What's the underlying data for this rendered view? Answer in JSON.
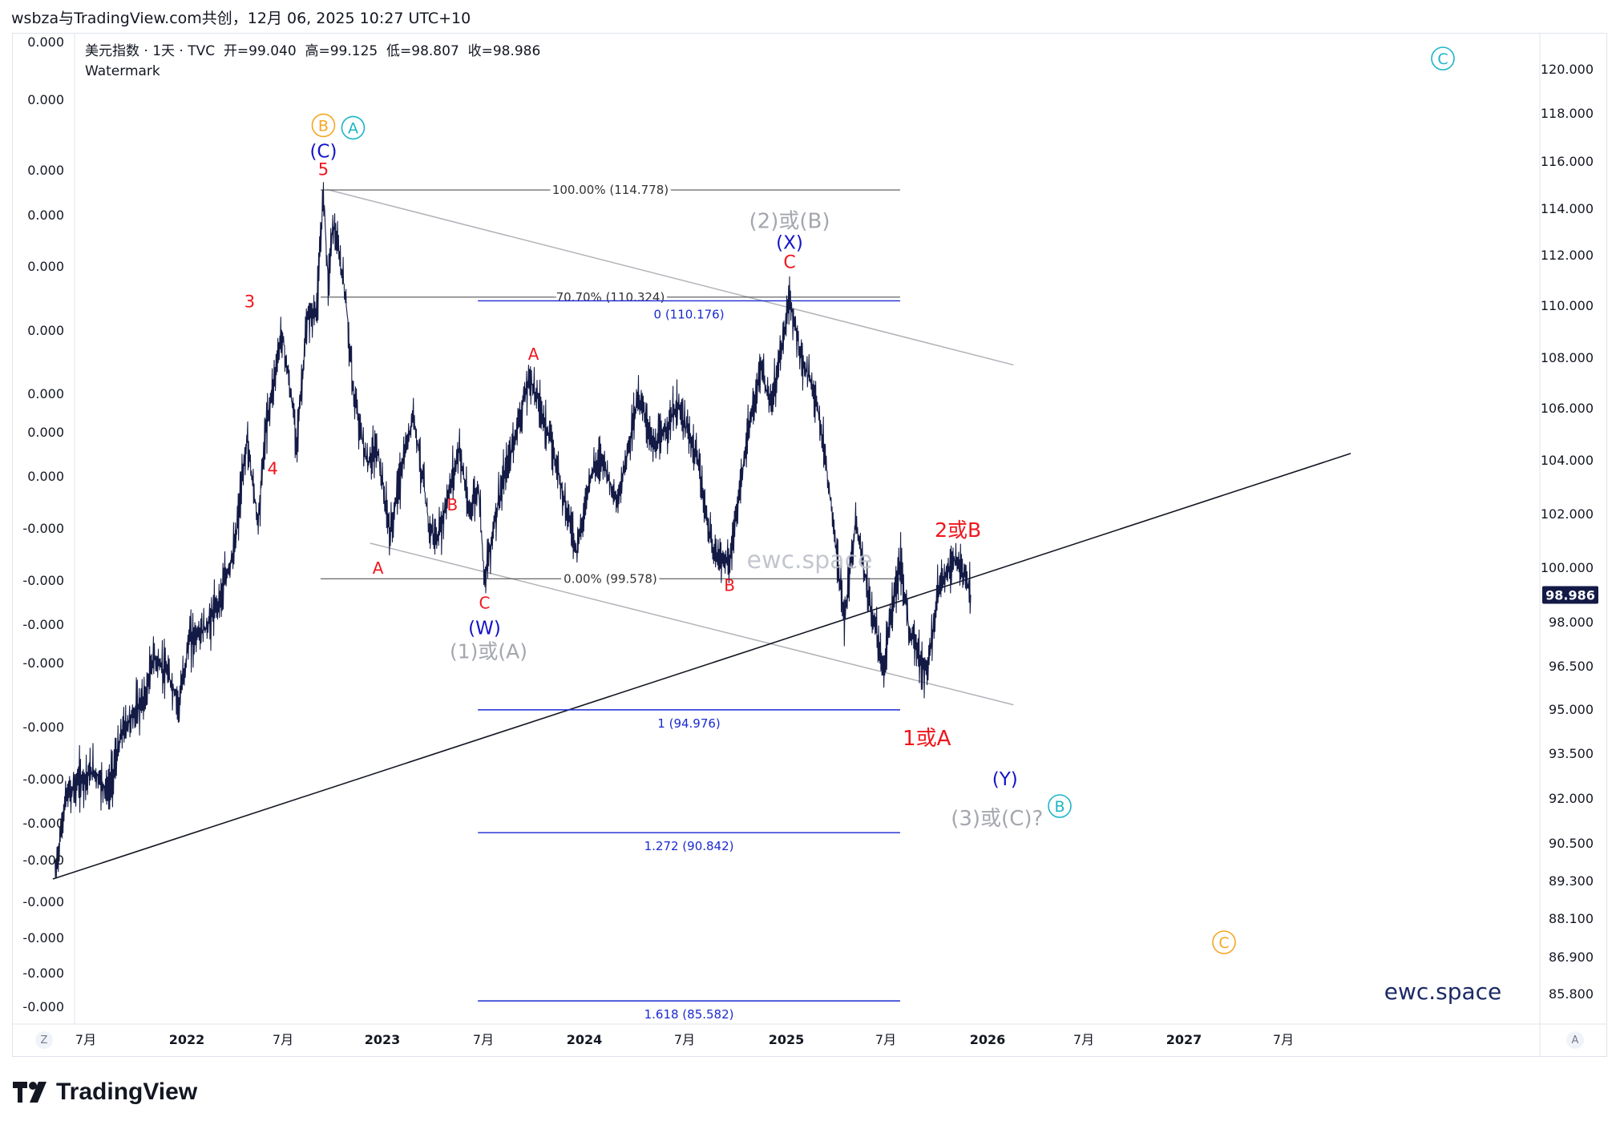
{
  "header": {
    "text": "wsbza与TradingView.com共创，12月 06, 2025 10:27 UTC+10"
  },
  "legend": {
    "symbol": "美元指数 · 1天 · TVC",
    "open": "开=99.040",
    "high": "高=99.125",
    "low": "低=98.807",
    "close": "收=98.986",
    "watermark_label": "Watermark"
  },
  "watermarks": {
    "center": "ewc.space",
    "corner": "ewc.space"
  },
  "brand": {
    "logo_text": "TradingView"
  },
  "axis_buttons": {
    "left": "Z",
    "right": "A"
  },
  "colors": {
    "price_line": "#131a45",
    "red_labels": "#f0151d",
    "blue_labels": "#1414c8",
    "gray_labels": "#a4a7ae",
    "teal_circles": "#1cb6c6",
    "orange_circles": "#f5a623",
    "fib_gray": "#555555",
    "fib_blue": "#1a2ad0",
    "channel_gray": "#b0b3b8"
  },
  "chart_data": {
    "type": "line",
    "title": "美元指数 · 1天 · TVC",
    "last_price": 98.986,
    "last_price_label": "98.986",
    "right_axis_ticks": [
      "120.000",
      "118.000",
      "116.000",
      "114.000",
      "112.000",
      "110.000",
      "108.000",
      "106.000",
      "104.000",
      "102.000",
      "100.000",
      "98.000",
      "96.500",
      "95.000",
      "93.500",
      "92.000",
      "90.500",
      "89.300",
      "88.100",
      "86.900",
      "85.800"
    ],
    "left_axis_ticks": [
      "0.000",
      "0.000",
      "0.000",
      "0.000",
      "0.000",
      "0.000",
      "0.000",
      "0.000",
      "0.000",
      "-0.000",
      "-0.000",
      "-0.000",
      "-0.000",
      "-0.000",
      "-0.000",
      "-0.000",
      "-0.000",
      "-0.000",
      "-0.000",
      "-0.000",
      "-0.000"
    ],
    "x_ticks": [
      "7月",
      "2022",
      "7月",
      "2023",
      "7月",
      "2024",
      "7月",
      "2025",
      "7月",
      "2026",
      "7月",
      "2027",
      "7月"
    ],
    "series": [
      {
        "name": "美元指数",
        "points": [
          {
            "t": "2021-06-01",
            "v": 89.5
          },
          {
            "t": "2021-06-20",
            "v": 92.0
          },
          {
            "t": "2021-07-15",
            "v": 92.6
          },
          {
            "t": "2021-08-10",
            "v": 92.9
          },
          {
            "t": "2021-09-05",
            "v": 92.2
          },
          {
            "t": "2021-10-01",
            "v": 94.3
          },
          {
            "t": "2021-11-10",
            "v": 95.4
          },
          {
            "t": "2021-11-25",
            "v": 96.8
          },
          {
            "t": "2021-12-20",
            "v": 96.2
          },
          {
            "t": "2022-01-10",
            "v": 95.2
          },
          {
            "t": "2022-01-28",
            "v": 97.4
          },
          {
            "t": "2022-03-01",
            "v": 97.8
          },
          {
            "t": "2022-03-25",
            "v": 98.9
          },
          {
            "t": "2022-04-20",
            "v": 100.7
          },
          {
            "t": "2022-05-12",
            "v": 104.8
          },
          {
            "t": "2022-06-01",
            "v": 101.7
          },
          {
            "t": "2022-06-15",
            "v": 105.2
          },
          {
            "t": "2022-07-14",
            "v": 109.0
          },
          {
            "t": "2022-08-10",
            "v": 104.8
          },
          {
            "t": "2022-08-29",
            "v": 109.5
          },
          {
            "t": "2022-09-15",
            "v": 109.8
          },
          {
            "t": "2022-09-27",
            "v": 114.8
          },
          {
            "t": "2022-10-05",
            "v": 110.9
          },
          {
            "t": "2022-10-14",
            "v": 113.4
          },
          {
            "t": "2022-11-05",
            "v": 110.5
          },
          {
            "t": "2022-11-20",
            "v": 106.5
          },
          {
            "t": "2022-12-15",
            "v": 103.8
          },
          {
            "t": "2023-01-01",
            "v": 104.5
          },
          {
            "t": "2023-01-25",
            "v": 101.2
          },
          {
            "t": "2023-02-10",
            "v": 103.2
          },
          {
            "t": "2023-03-08",
            "v": 105.8
          },
          {
            "t": "2023-04-05",
            "v": 101.5
          },
          {
            "t": "2023-04-20",
            "v": 101.0
          },
          {
            "t": "2023-05-30",
            "v": 104.5
          },
          {
            "t": "2023-06-15",
            "v": 102.0
          },
          {
            "t": "2023-07-03",
            "v": 103.0
          },
          {
            "t": "2023-07-14",
            "v": 99.6
          },
          {
            "t": "2023-08-05",
            "v": 102.2
          },
          {
            "t": "2023-09-05",
            "v": 104.8
          },
          {
            "t": "2023-10-03",
            "v": 107.2
          },
          {
            "t": "2023-10-20",
            "v": 106.2
          },
          {
            "t": "2023-11-15",
            "v": 104.3
          },
          {
            "t": "2023-12-27",
            "v": 100.6
          },
          {
            "t": "2024-01-20",
            "v": 103.4
          },
          {
            "t": "2024-02-10",
            "v": 104.2
          },
          {
            "t": "2024-03-08",
            "v": 102.3
          },
          {
            "t": "2024-04-16",
            "v": 106.5
          },
          {
            "t": "2024-05-15",
            "v": 104.4
          },
          {
            "t": "2024-06-26",
            "v": 106.1
          },
          {
            "t": "2024-07-31",
            "v": 104.0
          },
          {
            "t": "2024-08-27",
            "v": 100.6
          },
          {
            "t": "2024-09-27",
            "v": 100.2
          },
          {
            "t": "2024-10-25",
            "v": 104.3
          },
          {
            "t": "2024-11-22",
            "v": 107.6
          },
          {
            "t": "2024-12-10",
            "v": 106.0
          },
          {
            "t": "2025-01-13",
            "v": 110.2
          },
          {
            "t": "2025-02-05",
            "v": 107.8
          },
          {
            "t": "2025-03-01",
            "v": 106.5
          },
          {
            "t": "2025-03-20",
            "v": 103.8
          },
          {
            "t": "2025-04-10",
            "v": 100.0
          },
          {
            "t": "2025-04-21",
            "v": 98.0
          },
          {
            "t": "2025-05-12",
            "v": 101.8
          },
          {
            "t": "2025-06-05",
            "v": 98.8
          },
          {
            "t": "2025-07-01",
            "v": 96.4
          },
          {
            "t": "2025-07-15",
            "v": 98.4
          },
          {
            "t": "2025-08-01",
            "v": 100.2
          },
          {
            "t": "2025-08-15",
            "v": 97.8
          },
          {
            "t": "2025-09-17",
            "v": 96.2
          },
          {
            "t": "2025-10-10",
            "v": 99.4
          },
          {
            "t": "2025-11-05",
            "v": 100.3
          },
          {
            "t": "2025-11-25",
            "v": 99.6
          },
          {
            "t": "2025-12-05",
            "v": 98.99
          }
        ]
      }
    ],
    "fibonacci_retracement": [
      {
        "label": "100.00% (114.778)",
        "level": 114.778
      },
      {
        "label": "70.70% (110.324)",
        "level": 110.324
      },
      {
        "label": "0.00% (99.578)",
        "level": 99.578
      }
    ],
    "fibonacci_extension": [
      {
        "label": "0 (110.176)",
        "level": 110.176
      },
      {
        "label": "1 (94.976)",
        "level": 94.976
      },
      {
        "label": "1.272 (90.842)",
        "level": 90.842
      },
      {
        "label": "1.618 (85.582)",
        "level": 85.582
      }
    ],
    "wave_labels": [
      {
        "text": "5",
        "color": "red",
        "t": "2022-09-27",
        "v": 114.8
      },
      {
        "text": "(C)",
        "color": "blue",
        "t": "2022-09-27",
        "v": 114.8
      },
      {
        "text": "3",
        "color": "red",
        "t": "2022-07-14",
        "v": 109.0
      },
      {
        "text": "4",
        "color": "red",
        "t": "2022-08-10",
        "v": 104.8
      },
      {
        "text": "A",
        "color": "red",
        "t": "2023-01-25",
        "v": 101.2
      },
      {
        "text": "B",
        "color": "red",
        "t": "2023-06-15",
        "v": 103.2
      },
      {
        "text": "C",
        "color": "red",
        "t": "2023-07-14",
        "v": 99.6
      },
      {
        "text": "(W)",
        "color": "blue",
        "t": "2023-07-14",
        "v": 99.6
      },
      {
        "text": "(1)或(A)",
        "color": "gray",
        "t": "2023-07-14",
        "v": 99.6
      },
      {
        "text": "A",
        "color": "red",
        "t": "2023-10-03",
        "v": 107.2
      },
      {
        "text": "B",
        "color": "red",
        "t": "2024-09-27",
        "v": 100.2
      },
      {
        "text": "C",
        "color": "red",
        "t": "2025-01-13",
        "v": 110.2
      },
      {
        "text": "(X)",
        "color": "blue",
        "t": "2025-01-13",
        "v": 110.2
      },
      {
        "text": "(2)或(B)",
        "color": "gray",
        "t": "2025-01-13",
        "v": 110.2
      },
      {
        "text": "1或A",
        "color": "red",
        "t": "2025-09-17",
        "v": 96.2
      },
      {
        "text": "2或B",
        "color": "red",
        "t": "2025-11-05",
        "v": 100.3
      },
      {
        "text": "(Y)",
        "color": "blue",
        "t": "2026-03-20",
        "v": 93.5
      },
      {
        "text": "(3)或(C)?",
        "color": "gray",
        "t": "2026-03-20",
        "v": 93.5
      }
    ],
    "circle_labels": [
      {
        "text": "B",
        "color": "orange",
        "t": "2022-09-27",
        "v": 114.8
      },
      {
        "text": "A",
        "color": "teal",
        "t": "2022-09-27",
        "v": 114.8
      },
      {
        "text": "B",
        "color": "teal",
        "t": "2026-03-20",
        "v": 93.5
      },
      {
        "text": "C",
        "color": "teal",
        "t": "2027-06-01",
        "v": 120.0
      },
      {
        "text": "C",
        "color": "orange",
        "t": "2027-04-01",
        "v": 87.0
      }
    ]
  }
}
